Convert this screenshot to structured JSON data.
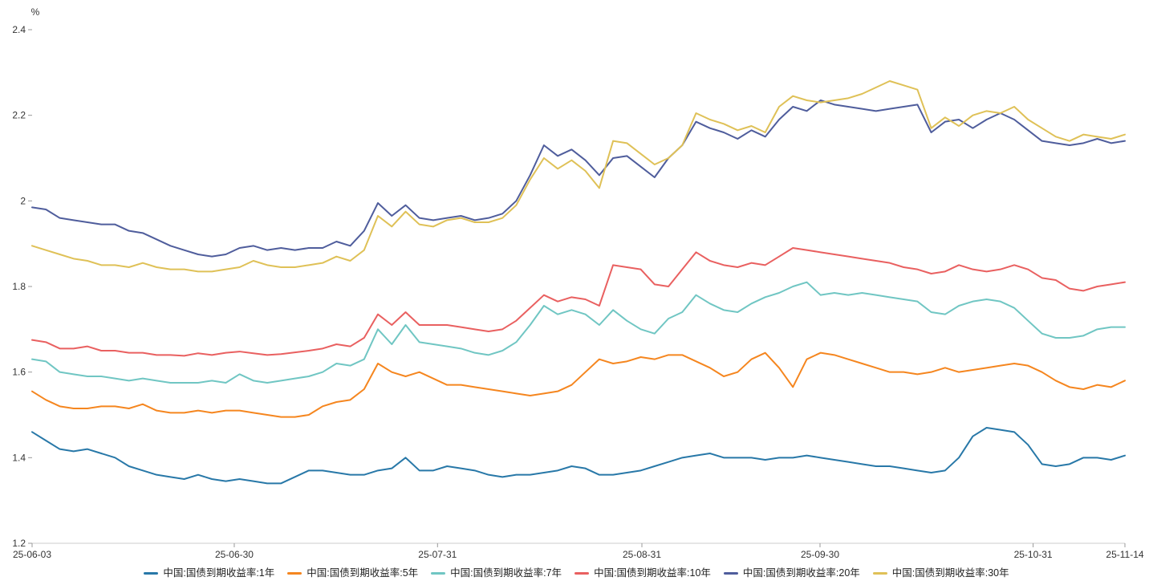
{
  "chart_data": {
    "type": "line",
    "title": "",
    "y_unit": "%",
    "ylim": [
      1.2,
      2.4
    ],
    "ytick_values": [
      1.2,
      1.4,
      1.6,
      1.8,
      2.0,
      2.2,
      2.4
    ],
    "ytick_labels": [
      "1.2",
      "1.4",
      "1.6",
      "1.8",
      "2",
      "2.2",
      "2.4"
    ],
    "grid": false,
    "legend_position": "bottom",
    "x_range_dates": [
      "25-06-03",
      "25-11-14"
    ],
    "xticks": [
      {
        "label": "25-06-03",
        "f": 0
      },
      {
        "label": "25-06-30",
        "f": 0.185
      },
      {
        "label": "25-07-31",
        "f": 0.371
      },
      {
        "label": "25-08-31",
        "f": 0.558
      },
      {
        "label": "25-09-30",
        "f": 0.721
      },
      {
        "label": "25-10-31",
        "f": 0.916
      },
      {
        "label": "25-11-14",
        "f": 1.0
      }
    ],
    "series": [
      {
        "key": "1y",
        "name": "中国:国债到期收益率:1年",
        "color": "#2878a8",
        "values": [
          1.46,
          1.44,
          1.42,
          1.415,
          1.42,
          1.41,
          1.4,
          1.38,
          1.37,
          1.36,
          1.355,
          1.35,
          1.36,
          1.35,
          1.345,
          1.35,
          1.345,
          1.34,
          1.34,
          1.355,
          1.37,
          1.37,
          1.365,
          1.36,
          1.36,
          1.37,
          1.375,
          1.4,
          1.37,
          1.37,
          1.38,
          1.375,
          1.37,
          1.36,
          1.355,
          1.36,
          1.36,
          1.365,
          1.37,
          1.38,
          1.375,
          1.36,
          1.36,
          1.365,
          1.37,
          1.38,
          1.39,
          1.4,
          1.405,
          1.41,
          1.4,
          1.4,
          1.4,
          1.395,
          1.4,
          1.4,
          1.405,
          1.4,
          1.395,
          1.39,
          1.385,
          1.38,
          1.38,
          1.375,
          1.37,
          1.365,
          1.37,
          1.4,
          1.45,
          1.47,
          1.465,
          1.46,
          1.43,
          1.385,
          1.38,
          1.385,
          1.4,
          1.4,
          1.395,
          1.405
        ]
      },
      {
        "key": "5y",
        "name": "中国:国债到期收益率:5年",
        "color": "#f5861f",
        "values": [
          1.555,
          1.535,
          1.52,
          1.515,
          1.515,
          1.52,
          1.52,
          1.515,
          1.525,
          1.51,
          1.505,
          1.505,
          1.51,
          1.505,
          1.51,
          1.51,
          1.505,
          1.5,
          1.495,
          1.495,
          1.5,
          1.52,
          1.53,
          1.535,
          1.56,
          1.62,
          1.6,
          1.59,
          1.6,
          1.585,
          1.57,
          1.57,
          1.565,
          1.56,
          1.555,
          1.55,
          1.545,
          1.55,
          1.555,
          1.57,
          1.6,
          1.63,
          1.62,
          1.625,
          1.635,
          1.63,
          1.64,
          1.64,
          1.625,
          1.61,
          1.59,
          1.6,
          1.63,
          1.645,
          1.61,
          1.565,
          1.63,
          1.645,
          1.64,
          1.63,
          1.62,
          1.61,
          1.6,
          1.6,
          1.595,
          1.6,
          1.61,
          1.6,
          1.605,
          1.61,
          1.615,
          1.62,
          1.615,
          1.6,
          1.58,
          1.565,
          1.56,
          1.57,
          1.565,
          1.58
        ]
      },
      {
        "key": "7y",
        "name": "中国:国债到期收益率:7年",
        "color": "#70c6c3",
        "values": [
          1.63,
          1.625,
          1.6,
          1.595,
          1.59,
          1.59,
          1.585,
          1.58,
          1.585,
          1.58,
          1.575,
          1.575,
          1.575,
          1.58,
          1.575,
          1.595,
          1.58,
          1.575,
          1.58,
          1.585,
          1.59,
          1.6,
          1.62,
          1.615,
          1.63,
          1.7,
          1.665,
          1.71,
          1.67,
          1.665,
          1.66,
          1.655,
          1.645,
          1.64,
          1.65,
          1.67,
          1.71,
          1.755,
          1.735,
          1.745,
          1.735,
          1.71,
          1.745,
          1.72,
          1.7,
          1.69,
          1.725,
          1.74,
          1.78,
          1.76,
          1.745,
          1.74,
          1.76,
          1.775,
          1.785,
          1.8,
          1.81,
          1.78,
          1.785,
          1.78,
          1.785,
          1.78,
          1.775,
          1.77,
          1.765,
          1.74,
          1.735,
          1.755,
          1.765,
          1.77,
          1.765,
          1.75,
          1.72,
          1.69,
          1.68,
          1.68,
          1.685,
          1.7,
          1.705,
          1.705
        ]
      },
      {
        "key": "10y",
        "name": "中国:国债到期收益率:10年",
        "color": "#e96060",
        "values": [
          1.675,
          1.67,
          1.655,
          1.655,
          1.66,
          1.65,
          1.65,
          1.645,
          1.645,
          1.64,
          1.64,
          1.638,
          1.644,
          1.64,
          1.645,
          1.648,
          1.644,
          1.64,
          1.642,
          1.646,
          1.65,
          1.655,
          1.665,
          1.66,
          1.68,
          1.735,
          1.71,
          1.74,
          1.71,
          1.71,
          1.71,
          1.705,
          1.7,
          1.695,
          1.7,
          1.72,
          1.75,
          1.78,
          1.765,
          1.775,
          1.77,
          1.755,
          1.85,
          1.845,
          1.84,
          1.805,
          1.8,
          1.84,
          1.88,
          1.86,
          1.85,
          1.845,
          1.855,
          1.85,
          1.87,
          1.89,
          1.885,
          1.88,
          1.875,
          1.87,
          1.865,
          1.86,
          1.855,
          1.845,
          1.84,
          1.83,
          1.835,
          1.85,
          1.84,
          1.835,
          1.84,
          1.85,
          1.84,
          1.82,
          1.815,
          1.795,
          1.79,
          1.8,
          1.805,
          1.81
        ]
      },
      {
        "key": "20y",
        "name": "中国:国债到期收益率:20年",
        "color": "#4f5d9c",
        "values": [
          1.985,
          1.98,
          1.96,
          1.955,
          1.95,
          1.945,
          1.945,
          1.93,
          1.925,
          1.91,
          1.895,
          1.885,
          1.875,
          1.87,
          1.875,
          1.89,
          1.895,
          1.885,
          1.89,
          1.885,
          1.89,
          1.89,
          1.905,
          1.895,
          1.93,
          1.995,
          1.965,
          1.99,
          1.96,
          1.955,
          1.96,
          1.965,
          1.955,
          1.96,
          1.97,
          2.0,
          2.06,
          2.13,
          2.105,
          2.12,
          2.095,
          2.06,
          2.1,
          2.105,
          2.08,
          2.055,
          2.1,
          2.13,
          2.185,
          2.17,
          2.16,
          2.145,
          2.165,
          2.15,
          2.19,
          2.22,
          2.21,
          2.235,
          2.225,
          2.22,
          2.215,
          2.21,
          2.215,
          2.22,
          2.225,
          2.16,
          2.185,
          2.19,
          2.17,
          2.19,
          2.205,
          2.19,
          2.165,
          2.14,
          2.135,
          2.13,
          2.135,
          2.145,
          2.135,
          2.14
        ]
      },
      {
        "key": "30y",
        "name": "中国:国债到期收益率:30年",
        "color": "#dfc157",
        "values": [
          1.895,
          1.885,
          1.875,
          1.865,
          1.86,
          1.85,
          1.85,
          1.845,
          1.855,
          1.845,
          1.84,
          1.84,
          1.835,
          1.835,
          1.84,
          1.845,
          1.86,
          1.85,
          1.845,
          1.845,
          1.85,
          1.855,
          1.87,
          1.86,
          1.885,
          1.965,
          1.94,
          1.975,
          1.945,
          1.94,
          1.955,
          1.96,
          1.95,
          1.95,
          1.96,
          1.99,
          2.05,
          2.1,
          2.075,
          2.095,
          2.07,
          2.03,
          2.14,
          2.135,
          2.11,
          2.085,
          2.1,
          2.13,
          2.205,
          2.19,
          2.18,
          2.165,
          2.175,
          2.16,
          2.22,
          2.245,
          2.235,
          2.23,
          2.235,
          2.24,
          2.25,
          2.265,
          2.28,
          2.27,
          2.26,
          2.17,
          2.195,
          2.175,
          2.2,
          2.21,
          2.205,
          2.22,
          2.19,
          2.17,
          2.15,
          2.14,
          2.155,
          2.15,
          2.145,
          2.155
        ]
      }
    ]
  }
}
